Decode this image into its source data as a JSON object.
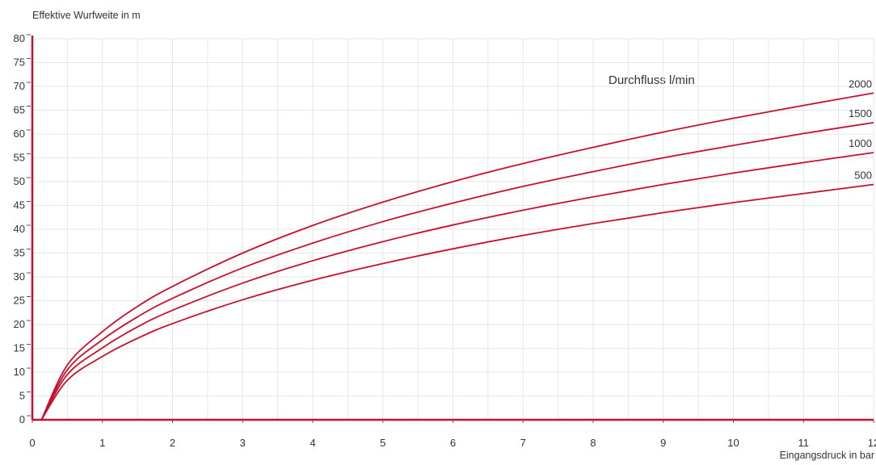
{
  "chart_data": {
    "type": "line",
    "ylabel": "Effektive Wurfweite in m",
    "xlabel": "Eingangsdruck in bar",
    "legend_title": "Durchfluss l/min",
    "xlim": [
      0,
      12
    ],
    "ylim": [
      0,
      80
    ],
    "x_ticks": [
      "0",
      "1",
      "2",
      "3",
      "4",
      "5",
      "6",
      "7",
      "8",
      "9",
      "10",
      "11",
      "12"
    ],
    "y_ticks": [
      "0",
      "5",
      "10",
      "15",
      "20",
      "25",
      "30",
      "35",
      "40",
      "45",
      "50",
      "55",
      "60",
      "65",
      "70",
      "75",
      "80"
    ],
    "grid": true,
    "line_color": "#c8102e",
    "series": [
      {
        "name": "2000",
        "x": [
          0.13,
          0.5,
          1,
          1.5,
          2,
          3,
          4,
          5,
          6,
          7,
          8,
          9,
          10,
          11,
          12
        ],
        "y": [
          0,
          11.5,
          18.5,
          23.8,
          28,
          35,
          40.8,
          45.7,
          50,
          53.8,
          57.2,
          60.4,
          63.3,
          66,
          68.6
        ]
      },
      {
        "name": "1500",
        "x": [
          0.13,
          0.5,
          1,
          1.5,
          2,
          3,
          4,
          5,
          6,
          7,
          8,
          9,
          10,
          11,
          12
        ],
        "y": [
          0,
          10.5,
          16.8,
          21.6,
          25.5,
          31.9,
          37.1,
          41.6,
          45.5,
          49,
          52.1,
          55,
          57.6,
          60.1,
          62.4
        ]
      },
      {
        "name": "1000",
        "x": [
          0.13,
          0.5,
          1,
          1.5,
          2,
          3,
          4,
          5,
          6,
          7,
          8,
          9,
          10,
          11,
          12
        ],
        "y": [
          0,
          9.5,
          15.1,
          19.5,
          23,
          28.7,
          33.4,
          37.4,
          40.9,
          44,
          46.8,
          49.4,
          51.8,
          54,
          56.1
        ]
      },
      {
        "name": "500",
        "x": [
          0.13,
          0.5,
          1,
          1.5,
          2,
          3,
          4,
          5,
          6,
          7,
          8,
          9,
          10,
          11,
          12
        ],
        "y": [
          0,
          8.3,
          13.3,
          17.1,
          20.2,
          25.2,
          29.3,
          32.8,
          35.9,
          38.7,
          41.2,
          43.5,
          45.6,
          47.5,
          49.4
        ]
      }
    ]
  }
}
